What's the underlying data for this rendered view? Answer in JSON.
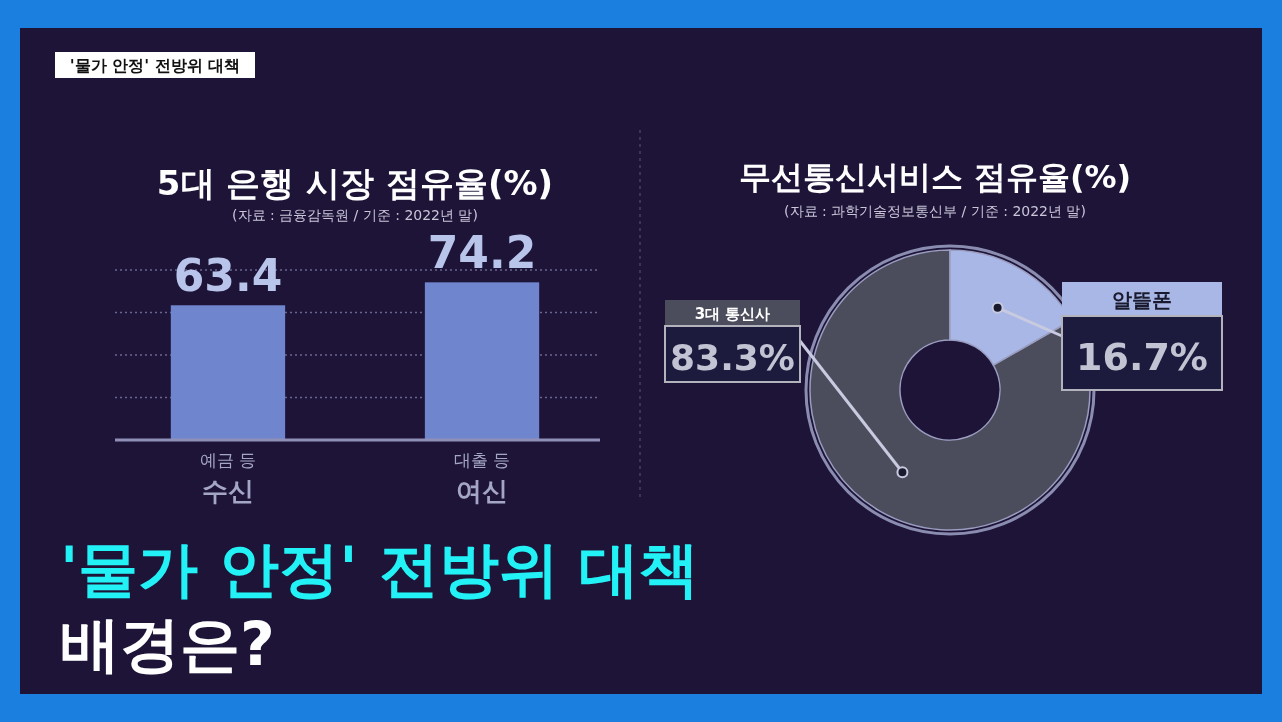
{
  "chart_data": [
    {
      "type": "bar",
      "title": "5대 은행 시장 점유율(%)",
      "subtitle": "(자료 : 금융감독원 / 기준 : 2022년 말)",
      "categories": [
        "예금 등\n수신",
        "대출 등\n여신"
      ],
      "values": [
        63.4,
        74.2
      ],
      "color": "#6f86cf",
      "data_labels": true,
      "ylim": [
        0,
        80
      ],
      "yticks": [
        {
          "value": 20,
          "label": null
        },
        {
          "value": 40,
          "label": null
        },
        {
          "value": 60,
          "label": null
        },
        {
          "value": 80,
          "label": null
        }
      ],
      "tick_labels": "x",
      "grid": "y",
      "annotations": [
        "'물가 안정' 전방위 대책",
        "'물가 안정' 전방위 대책\n배경은?"
      ]
    },
    {
      "type": "donut",
      "title": "무선통신서비스 점유율(%)",
      "subtitle": "(자료 : 과학기술정보통신부 / 기준 : 2022년 말)",
      "categories": [
        "3대 통신사",
        "알뜰폰"
      ],
      "values": [
        83.3,
        16.7
      ],
      "colors": [
        "#4b4d5c",
        "#a8b7e6"
      ],
      "value_labels": [
        "83.3%",
        "16.7%"
      ]
    }
  ]
}
